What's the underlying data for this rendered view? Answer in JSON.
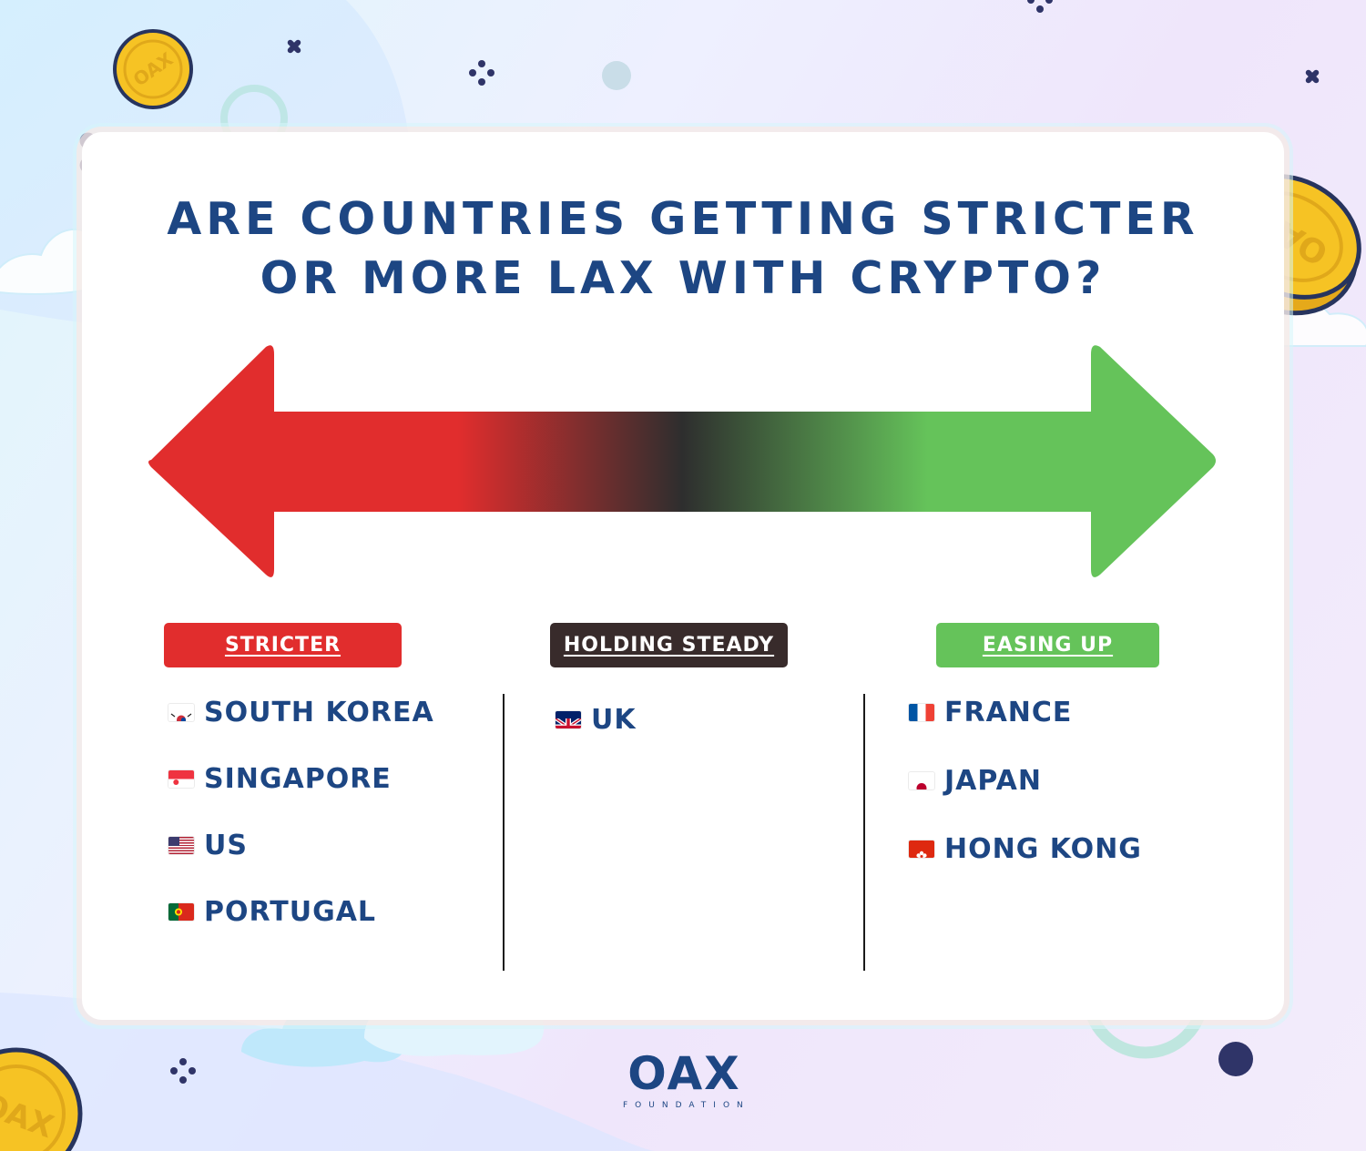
{
  "title": {
    "line1": "ARE COUNTRIES GETTING STRICTER",
    "line2": "OR MORE LAX WITH CRYPTO?"
  },
  "colors": {
    "title_blue": "#1d4683",
    "stricter_red": "#e12d2d",
    "steady_dark": "#382b2b",
    "easing_green": "#65c35a"
  },
  "columns": {
    "stricter": {
      "label": "STRICTER",
      "countries": [
        {
          "name": "SOUTH KOREA",
          "flag": "south-korea-flag-icon"
        },
        {
          "name": "SINGAPORE",
          "flag": "singapore-flag-icon"
        },
        {
          "name": "US",
          "flag": "us-flag-icon"
        },
        {
          "name": "PORTUGAL",
          "flag": "portugal-flag-icon"
        }
      ]
    },
    "steady": {
      "label": "HOLDING STEADY",
      "countries": [
        {
          "name": "UK",
          "flag": "uk-flag-icon"
        }
      ]
    },
    "easing": {
      "label": "EASING UP",
      "countries": [
        {
          "name": "FRANCE",
          "flag": "france-flag-icon"
        },
        {
          "name": "JAPAN",
          "flag": "japan-flag-icon"
        },
        {
          "name": "HONG KONG",
          "flag": "hong-kong-flag-icon"
        }
      ]
    }
  },
  "coin_text": "OAX",
  "logo": {
    "name": "OAX",
    "tagline": "FOUNDATION"
  }
}
